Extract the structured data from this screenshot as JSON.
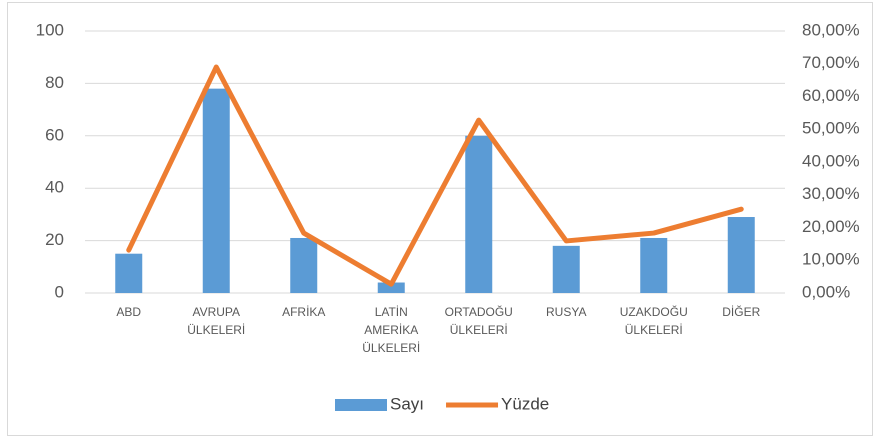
{
  "chart_data": {
    "type": "bar-line",
    "categories": [
      [
        "ABD"
      ],
      [
        "AVRUPA",
        "ÜLKELERİ"
      ],
      [
        "AFRİKA"
      ],
      [
        "LATİN",
        "AMERİKA",
        "ÜLKELERİ"
      ],
      [
        "ORTADOĞU",
        "ÜLKELERİ"
      ],
      [
        "RUSYA"
      ],
      [
        "UZAKDOĞU",
        "ÜLKELERİ"
      ],
      [
        "DİĞER"
      ]
    ],
    "series": [
      {
        "name": "Sayı",
        "type": "bar",
        "color": "#5b9bd5",
        "values": [
          15,
          78,
          21,
          4,
          60,
          18,
          21,
          29
        ]
      },
      {
        "name": "Yüzde",
        "type": "line",
        "axis": "y2",
        "color": "#ed7d31",
        "values": [
          13.1,
          69.0,
          18.3,
          2.7,
          52.8,
          15.9,
          18.3,
          25.6
        ]
      }
    ],
    "ylim": [
      0,
      100
    ],
    "yticks": [
      0,
      20,
      40,
      60,
      80,
      100
    ],
    "y2lim": [
      0,
      80
    ],
    "y2ticks": [
      {
        "value": 0,
        "label": "0,00%"
      },
      {
        "value": 10,
        "label": "10,00%"
      },
      {
        "value": 20,
        "label": "20,00%"
      },
      {
        "value": 30,
        "label": "30,00%"
      },
      {
        "value": 40,
        "label": "40,00%"
      },
      {
        "value": 50,
        "label": "50,00%"
      },
      {
        "value": 60,
        "label": "60,00%"
      },
      {
        "value": 70,
        "label": "70,00%"
      },
      {
        "value": 80,
        "label": "80,00%"
      }
    ],
    "grid": true,
    "legend": "bottom"
  }
}
